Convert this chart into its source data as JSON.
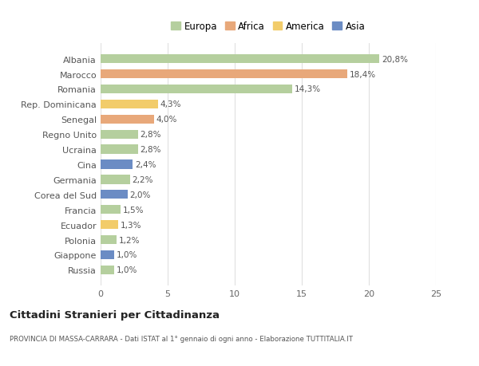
{
  "countries": [
    "Russia",
    "Giappone",
    "Polonia",
    "Ecuador",
    "Francia",
    "Corea del Sud",
    "Germania",
    "Cina",
    "Ucraina",
    "Regno Unito",
    "Senegal",
    "Rep. Dominicana",
    "Romania",
    "Marocco",
    "Albania"
  ],
  "values": [
    1.0,
    1.0,
    1.2,
    1.3,
    1.5,
    2.0,
    2.2,
    2.4,
    2.8,
    2.8,
    4.0,
    4.3,
    14.3,
    18.4,
    20.8
  ],
  "labels": [
    "1,0%",
    "1,0%",
    "1,2%",
    "1,3%",
    "1,5%",
    "2,0%",
    "2,2%",
    "2,4%",
    "2,8%",
    "2,8%",
    "4,0%",
    "4,3%",
    "14,3%",
    "18,4%",
    "20,8%"
  ],
  "colors": [
    "#b5cf9e",
    "#6b8cc4",
    "#b5cf9e",
    "#f2cc6a",
    "#b5cf9e",
    "#6b8cc4",
    "#b5cf9e",
    "#6b8cc4",
    "#b5cf9e",
    "#b5cf9e",
    "#e8a87a",
    "#f2cc6a",
    "#b5cf9e",
    "#e8a87a",
    "#b5cf9e"
  ],
  "legend_labels": [
    "Europa",
    "Africa",
    "America",
    "Asia"
  ],
  "legend_colors": [
    "#b5cf9e",
    "#e8a87a",
    "#f2cc6a",
    "#6b8cc4"
  ],
  "title": "Cittadini Stranieri per Cittadinanza",
  "subtitle": "PROVINCIA DI MASSA-CARRARA - Dati ISTAT al 1° gennaio di ogni anno - Elaborazione TUTTITALIA.IT",
  "xlim": [
    0,
    25
  ],
  "xticks": [
    0,
    5,
    10,
    15,
    20,
    25
  ],
  "background_color": "#ffffff",
  "grid_color": "#e0e0e0",
  "bar_height": 0.6
}
